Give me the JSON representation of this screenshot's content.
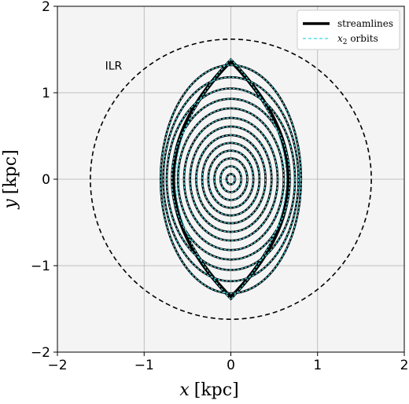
{
  "chart_data": {
    "type": "line",
    "xlabel": {
      "var": "x",
      "unit": "[kpc]"
    },
    "ylabel": {
      "var": "y",
      "unit": "[kpc]"
    },
    "xlim": [
      -2,
      2
    ],
    "ylim": [
      -2,
      2
    ],
    "xticks": [
      -2,
      -1,
      0,
      1,
      2
    ],
    "yticks": [
      -2,
      -1,
      0,
      1,
      2
    ],
    "x_tick_labels": [
      "−2",
      "−1",
      "0",
      "1",
      "2"
    ],
    "y_tick_labels": [
      "−2",
      "−1",
      "0",
      "1",
      "2"
    ],
    "grid": true,
    "background": "#f4f4f4",
    "legend": {
      "placement": "top-right",
      "entries": [
        {
          "label": "streamlines",
          "var": "",
          "sub": "",
          "suffix": "",
          "color": "#000000",
          "style": "solid"
        },
        {
          "label": "",
          "var": "x",
          "sub": "2",
          "suffix": " orbits",
          "color": "#55dde8",
          "style": "dashed"
        }
      ]
    },
    "annotations": [
      {
        "text": "ILR",
        "x": -1.45,
        "y": 1.27
      }
    ],
    "ilr_circle": {
      "radius": 1.62,
      "color": "#000000",
      "style": "dashed"
    },
    "streamlines": {
      "color": "#000000",
      "semi_axes_x": [
        0.05,
        0.12,
        0.19,
        0.26,
        0.33,
        0.4,
        0.47,
        0.54,
        0.61,
        0.68,
        0.74,
        0.78,
        0.81
      ],
      "semi_axes_y": [
        0.06,
        0.15,
        0.24,
        0.33,
        0.42,
        0.51,
        0.61,
        0.71,
        0.82,
        0.93,
        1.05,
        1.18,
        1.32
      ],
      "outer_envelope": {
        "x_max": 0.86,
        "y_max": 1.37
      }
    },
    "x2_orbits": {
      "color": "#55dde8",
      "semi_axes_x": [
        0.05,
        0.12,
        0.19,
        0.26,
        0.33,
        0.4,
        0.47,
        0.54,
        0.61,
        0.68,
        0.74,
        0.78,
        0.81
      ],
      "semi_axes_y": [
        0.06,
        0.15,
        0.24,
        0.33,
        0.42,
        0.51,
        0.61,
        0.71,
        0.82,
        0.93,
        1.05,
        1.18,
        1.32
      ],
      "outer_envelope": {
        "x_max": 0.82,
        "y_max": 1.39
      }
    }
  }
}
